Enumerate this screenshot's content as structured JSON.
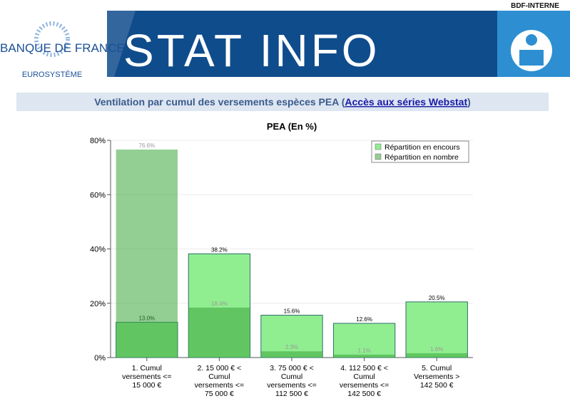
{
  "header": {
    "tag": "BDF-INTERNE",
    "bank": "BANQUE DE FRANCE",
    "eurosystem": "EUROSYSTÈME",
    "title": "STAT INFO"
  },
  "banner": {
    "text": "Ventilation par cumul des versements espèces PEA (",
    "link": "Accès aux séries Webstat",
    "close": ")"
  },
  "chart_data": {
    "type": "bar",
    "title": "PEA (En %)",
    "categories": [
      "1. Cumul versements <= 15 000 €",
      "2. 15 000 € < Cumul versements <= 75 000 €",
      "3. 75 000 € < Cumul versements <= 112 500 €",
      "4. 112 500 € < Cumul versements <= 142 500 €",
      "5. Cumul Versements > 142 500 €"
    ],
    "series": [
      {
        "name": "Répartition en encours",
        "color": "#90ee90",
        "values": [
          13.0,
          38.2,
          15.6,
          12.6,
          20.5
        ],
        "value_labels": [
          "13.0%",
          "38.2%",
          "15.6%",
          "12.6%",
          "20.5%"
        ]
      },
      {
        "name": "Répartition en nombre",
        "color": "#3aa63a",
        "values": [
          76.6,
          18.4,
          2.3,
          1.1,
          1.6
        ],
        "value_labels": [
          "76.6%",
          "18.4%",
          "2.3%",
          "1.1%",
          "1.6%"
        ]
      }
    ],
    "ylim": [
      0,
      80
    ],
    "yticks": [
      {
        "value": 0,
        "label": "0%"
      },
      {
        "value": 20,
        "label": "20%"
      },
      {
        "value": 40,
        "label": "40%"
      },
      {
        "value": 60,
        "label": "60%"
      },
      {
        "value": 80,
        "label": "80%"
      }
    ],
    "grid": true,
    "legend": "top-right"
  }
}
